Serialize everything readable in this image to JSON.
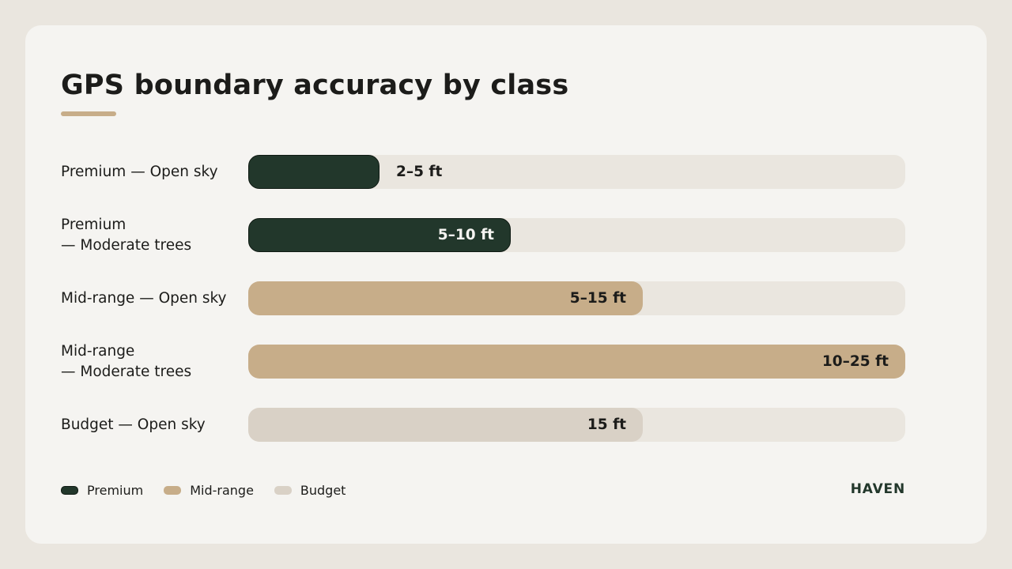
{
  "chart_data": {
    "type": "bar",
    "orientation": "horizontal",
    "title": "GPS boundary accuracy by class",
    "xlabel": "",
    "ylabel": "",
    "xlim": [
      0,
      25
    ],
    "grid": false,
    "legend_position": "bottom-left",
    "unit": "ft",
    "categories": [
      "Premium — Open sky",
      "Premium — Moderate trees",
      "Mid-range — Open sky",
      "Mid-range — Moderate trees",
      "Budget — Open sky"
    ],
    "bars": [
      {
        "label": "Premium — Open sky",
        "class": "Premium",
        "min": 2,
        "max": 5,
        "value": 5,
        "value_label": "2–5 ft"
      },
      {
        "label": "Premium — Moderate trees",
        "class": "Premium",
        "min": 5,
        "max": 10,
        "value": 10,
        "value_label": "5–10 ft"
      },
      {
        "label": "Mid-range — Open sky",
        "class": "Mid-range",
        "min": 5,
        "max": 15,
        "value": 15,
        "value_label": "5–15 ft"
      },
      {
        "label": "Mid-range — Moderate trees",
        "class": "Mid-range",
        "min": 10,
        "max": 25,
        "value": 25,
        "value_label": "10–25 ft"
      },
      {
        "label": "Budget — Open sky",
        "class": "Budget",
        "min": 15,
        "max": 15,
        "value": 15,
        "value_label": "15 ft"
      }
    ],
    "legend": [
      {
        "name": "Premium",
        "color": "#22372b"
      },
      {
        "name": "Mid-range",
        "color": "#c7ad89"
      },
      {
        "name": "Budget",
        "color": "#d9d1c6"
      }
    ]
  },
  "colors": {
    "background": "#eae6df",
    "card": "#f5f4f1",
    "track": "#eae6df",
    "accent": "#c7ad89",
    "premium": "#22372b",
    "mid_range": "#c7ad89",
    "budget": "#d9d1c6"
  },
  "brand": "HAVEN"
}
